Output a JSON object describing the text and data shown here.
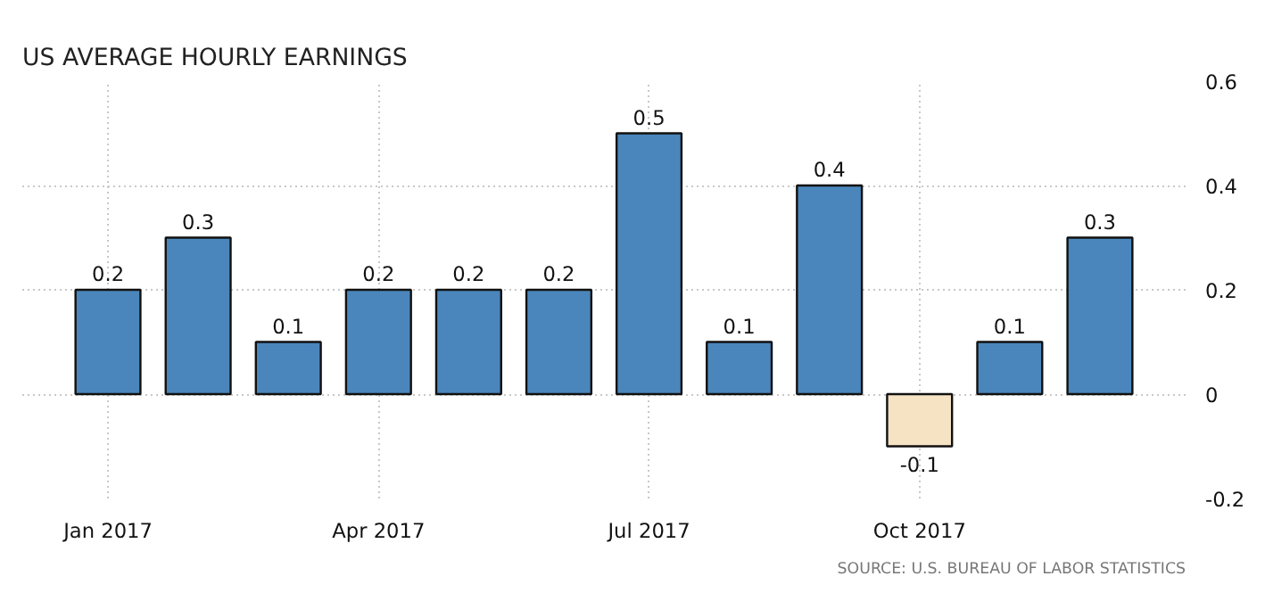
{
  "chart_data": {
    "type": "bar",
    "title": "US AVERAGE HOURLY EARNINGS",
    "categories": [
      "Jan 2017",
      null,
      null,
      "Apr 2017",
      null,
      null,
      "Jul 2017",
      null,
      null,
      "Oct 2017",
      null,
      null
    ],
    "values": [
      0.2,
      0.3,
      0.1,
      0.2,
      0.2,
      0.2,
      0.5,
      0.1,
      0.4,
      -0.1,
      0.1,
      0.3
    ],
    "colors": [
      "#4a86bb",
      "#4a86bb",
      "#4a86bb",
      "#4a86bb",
      "#4a86bb",
      "#4a86bb",
      "#4a86bb",
      "#4a86bb",
      "#4a86bb",
      "#f5e3c3",
      "#4a86bb",
      "#4a86bb"
    ],
    "ylim": [
      -0.2,
      0.6
    ],
    "yticks": [
      -0.2,
      0,
      0.2,
      0.4,
      0.6
    ],
    "grid": true,
    "data_labels": true,
    "annotations": [
      "SOURCE: U.S. BUREAU OF LABOR STATISTICS"
    ]
  }
}
